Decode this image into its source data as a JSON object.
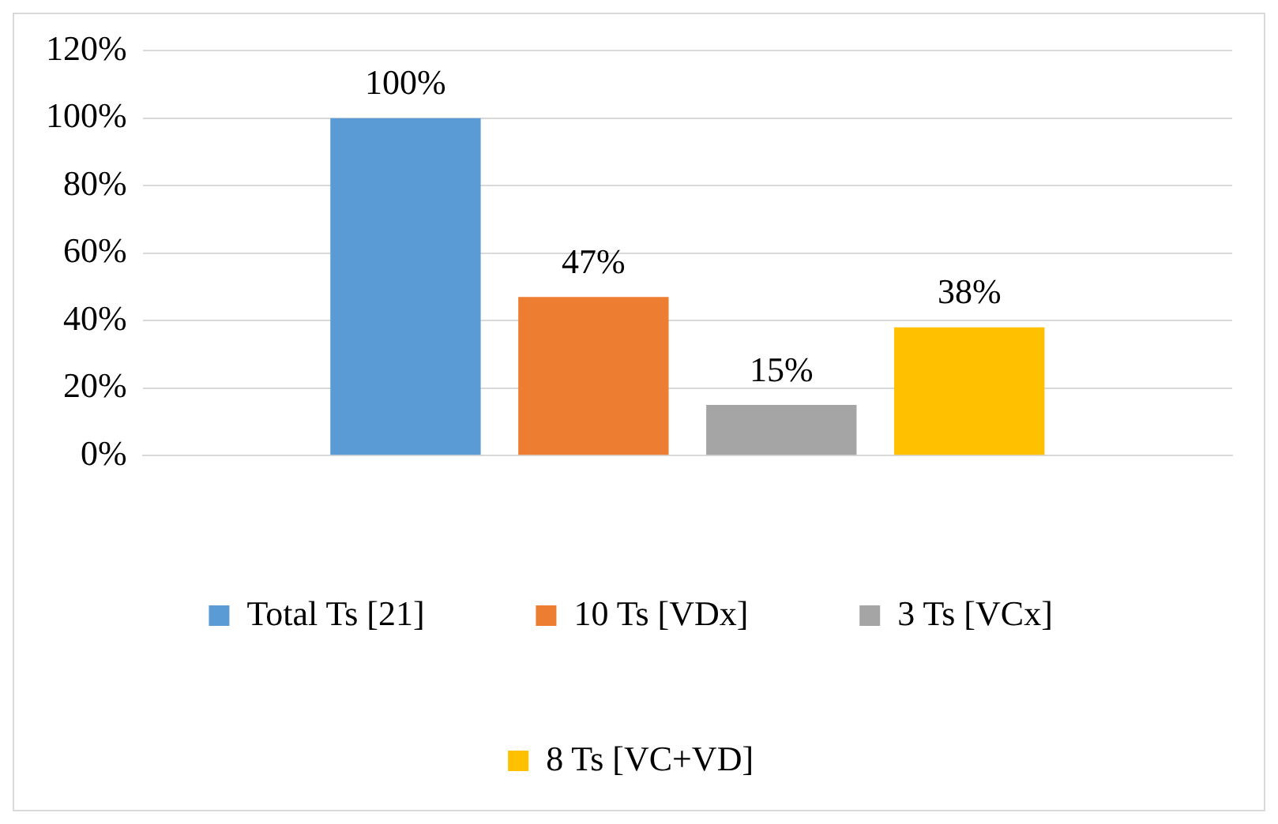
{
  "chart_data": {
    "type": "bar",
    "categories": [
      null
    ],
    "series": [
      {
        "name": "Total Ts [21]",
        "color": "#5b9bd5",
        "values": [
          100
        ],
        "value_labels": [
          "100%"
        ]
      },
      {
        "name": "10 Ts [VDx]",
        "color": "#ed7d31",
        "values": [
          47
        ],
        "value_labels": [
          "47%"
        ]
      },
      {
        "name": "3 Ts [VCx]",
        "color": "#a5a5a5",
        "values": [
          15
        ],
        "value_labels": [
          "15%"
        ]
      },
      {
        "name": "8 Ts [VC+VD]",
        "color": "#ffc000",
        "values": [
          38
        ],
        "value_labels": [
          "38%"
        ]
      }
    ],
    "ylim": [
      0,
      120
    ],
    "yticks": [
      {
        "value": 0,
        "label": "0%"
      },
      {
        "value": 20,
        "label": "20%"
      },
      {
        "value": 40,
        "label": "40%"
      },
      {
        "value": 60,
        "label": "60%"
      },
      {
        "value": 80,
        "label": "80%"
      },
      {
        "value": 100,
        "label": "100%"
      },
      {
        "value": 120,
        "label": "120%"
      }
    ],
    "grid": "y",
    "legend": "bottom"
  }
}
